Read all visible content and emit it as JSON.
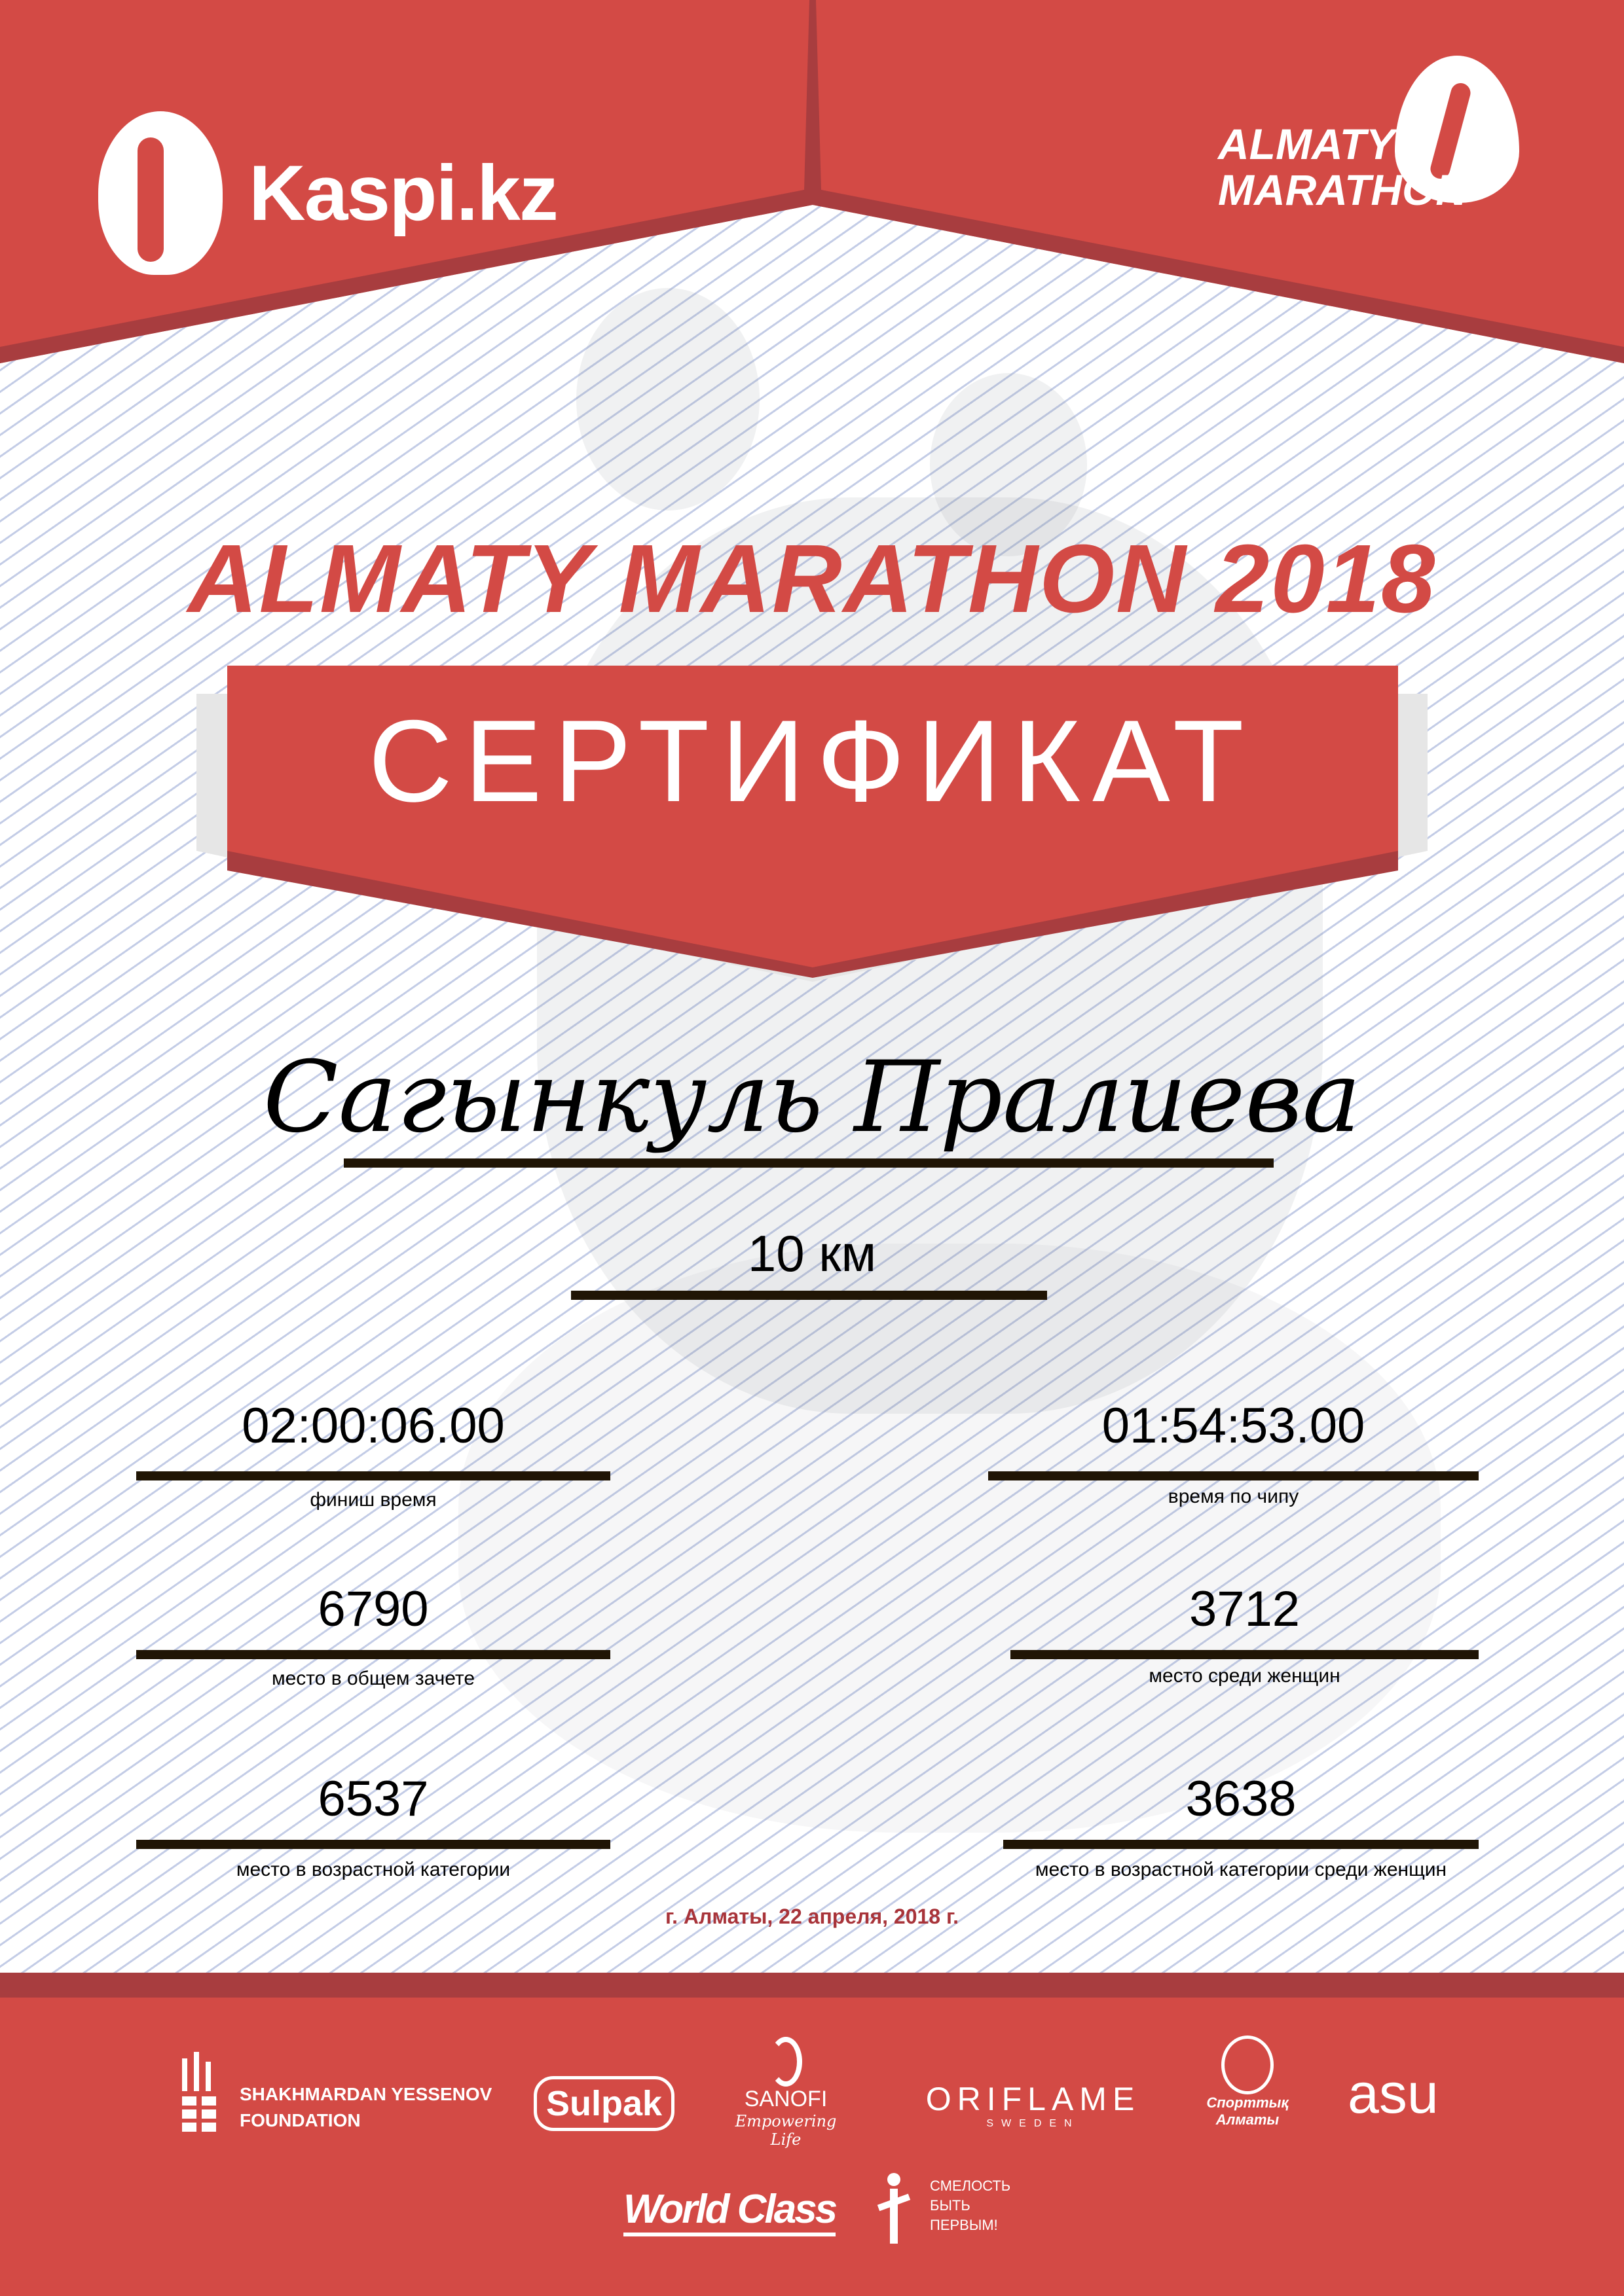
{
  "colors": {
    "brand_red": "#d34a45",
    "dark_red": "#a83d3f",
    "text": "#000000",
    "date_red": "#a8343a",
    "rule": "#201505"
  },
  "header": {
    "left_logo": {
      "text": "Kaspi.kz",
      "icon": "kaspi-figures-icon"
    },
    "right_logo": {
      "line1": "ALMATY",
      "line2": "MARATHON",
      "icon": "runner-drop-icon"
    }
  },
  "title": "ALMATY MARATHON 2018",
  "certificate_label": "СЕРТИФИКАТ",
  "participant": {
    "name": "Сагынкуль Пралиева",
    "distance": "10 км"
  },
  "results": [
    {
      "value": "02:00:06.00",
      "label": "финиш время"
    },
    {
      "value": "01:54:53.00",
      "label": "время по чипу"
    },
    {
      "value": "6790",
      "label": "место в общем зачете"
    },
    {
      "value": "3712",
      "label": "место среди женщин"
    },
    {
      "value": "6537",
      "label": "место в возрастной категории"
    },
    {
      "value": "3638",
      "label": "место в возрастной категории среди женщин"
    }
  ],
  "date_line": "г. Алматы, 22 апреля, 2018 г.",
  "sponsors": {
    "yessenov": {
      "line1": "SHAKHMARDAN YESSENOV",
      "line2": "FOUNDATION"
    },
    "sulpak": "Sulpak",
    "sanofi": {
      "name": "SANOFI",
      "tagline": "Empowering Life"
    },
    "oriflame": {
      "name": "ORIFLAME",
      "sub": "SWEDEN"
    },
    "sport_almaty": {
      "line1": "Спорттық",
      "line2": "Алматы"
    },
    "asu": "asu",
    "worldclass": "World Class",
    "fund": {
      "line1": "СМЕЛОСТЬ",
      "line2": "БЫТЬ",
      "line3": "ПЕРВЫМ!"
    }
  }
}
